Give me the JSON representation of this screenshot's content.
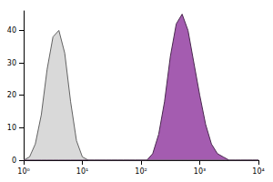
{
  "chart_data": {
    "type": "area",
    "x": [
      1,
      1.26,
      1.58,
      2,
      2.51,
      3.16,
      3.98,
      5.01,
      6.31,
      7.94,
      10,
      12.6,
      15.8,
      20,
      25.1,
      31.6,
      39.8,
      50.1,
      63.1,
      79.4,
      100,
      126,
      158,
      200,
      251,
      316,
      398,
      501,
      631,
      794,
      1000,
      1260,
      1580,
      2000,
      2510,
      3160,
      3980,
      5010,
      6310,
      7940,
      10000
    ],
    "series": [
      {
        "color": "#d9d9d9",
        "values": [
          0,
          1,
          5,
          14,
          28,
          38,
          40,
          33,
          18,
          6,
          1,
          0,
          0,
          0,
          0,
          0,
          0,
          0,
          0,
          0,
          0,
          0,
          0,
          0,
          0,
          0,
          0,
          0,
          0,
          0,
          0,
          0,
          0,
          0,
          0,
          0,
          0,
          0,
          0,
          0,
          0
        ]
      },
      {
        "color": "#a45cb0",
        "values": [
          0,
          0,
          0,
          0,
          0,
          0,
          0,
          0,
          0,
          0,
          0,
          0,
          0,
          0,
          0,
          0,
          0,
          0,
          0,
          0,
          0,
          0,
          2,
          8,
          18,
          32,
          42,
          45,
          40,
          30,
          20,
          11,
          5,
          2,
          1,
          0,
          0,
          0,
          0,
          0,
          0
        ]
      }
    ],
    "log": "x",
    "xlim": [
      1,
      10000
    ],
    "xticks": [
      {
        "value": 1,
        "label": "10⁰"
      },
      {
        "value": 10,
        "label": "10¹"
      },
      {
        "value": 100,
        "label": "10²"
      },
      {
        "value": 1000,
        "label": "10³"
      },
      {
        "value": 10000,
        "label": "10⁴"
      }
    ],
    "ylim": [
      0,
      46
    ],
    "yticks": [
      0,
      10,
      20,
      30,
      40
    ],
    "grid": false
  }
}
